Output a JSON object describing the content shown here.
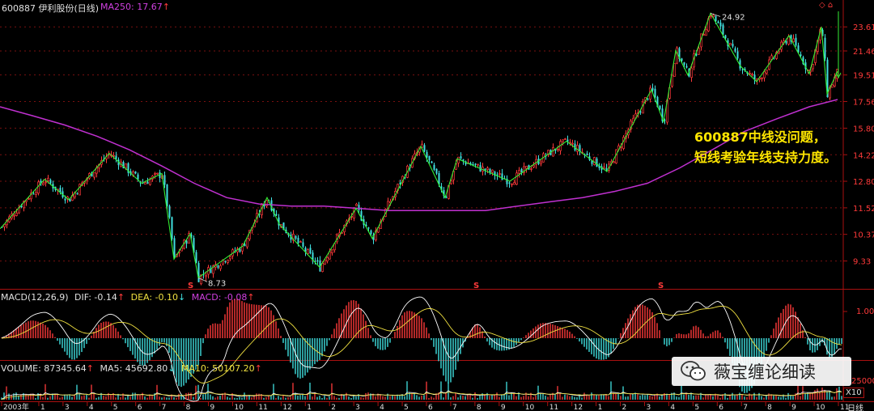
{
  "header": {
    "symbol_title": "600887 伊利股份(日线)",
    "ma250_label": "MA250: 17.67",
    "ma250_arrow": "↑",
    "top_right_icons": "◇ ⌂"
  },
  "annotation": {
    "line1": "600887中线没问题，",
    "line2": "短线考验年线支持力度。"
  },
  "markers": {
    "low_price": "8.73",
    "high_price": "24.92",
    "s_mark": "S"
  },
  "macd_header": {
    "title": "MACD(12,26,9)",
    "dif": "DIF: -0.14",
    "dif_arrow": "↑",
    "dea": "DEA: -0.10",
    "dea_arrow": "↓",
    "macd": "MACD: -0.08",
    "macd_arrow": "↑",
    "axis_label": "1.00"
  },
  "volume_header": {
    "volume": "VOLUME: 87345.64",
    "volume_arrow": "↑",
    "ma5": "MA5: 45692.80",
    "ma5_arrow": "↓",
    "ma10": "MA10: 50107.20",
    "ma10_arrow": "↑",
    "axis_label": "25000",
    "axis_unit": "X10"
  },
  "watermark": {
    "text": "薇宝缠论细读",
    "icon": "wechat-icon"
  },
  "bottom_axis": {
    "period_label": "日线",
    "ticks": [
      "2003年",
      "1",
      "3",
      "4",
      "5",
      "6",
      "7",
      "8",
      "9",
      "10",
      "11",
      "12",
      "1",
      "2",
      "3",
      "4",
      "5",
      "6",
      "7",
      "8",
      "9",
      "10",
      "11",
      "12",
      "1",
      "2",
      "3",
      "4",
      "5",
      "6",
      "7",
      "8",
      "9",
      "10",
      "11"
    ]
  },
  "colors": {
    "up": "#ff3a3a",
    "down": "#40e0e0",
    "ma250": "#c030d0",
    "zigzag": "#33ee33",
    "grid": "#7a1010",
    "annotation": "#ffe600"
  },
  "chart_data": [
    {
      "type": "candlestick",
      "title": "600887 伊利股份(日线)",
      "y_axis_ticks": [
        "23.61",
        "21.46",
        "19.51",
        "17.56",
        "15.80",
        "14.22",
        "12.80",
        "11.52",
        "10.37",
        "9.33"
      ],
      "y_scale": "log",
      "low_marker": 8.73,
      "high_marker": 24.92,
      "ma250": {
        "name": "MA250",
        "last_value": 17.67,
        "x": [
          0,
          40,
          80,
          120,
          160,
          200,
          240,
          280,
          320,
          360,
          400,
          440,
          480,
          520,
          560,
          600,
          640,
          680,
          720,
          760,
          800,
          840,
          880,
          920,
          960,
          1000,
          1035
        ],
        "y": [
          17.2,
          16.6,
          16.0,
          15.3,
          14.5,
          13.6,
          12.7,
          12.0,
          11.7,
          11.6,
          11.6,
          11.5,
          11.4,
          11.4,
          11.4,
          11.4,
          11.6,
          11.8,
          12.0,
          12.3,
          12.7,
          13.5,
          14.5,
          15.6,
          16.4,
          17.2,
          17.7
        ]
      },
      "zigzag": {
        "x": [
          0,
          55,
          85,
          135,
          175,
          200,
          215,
          235,
          245,
          300,
          330,
          345,
          395,
          440,
          460,
          520,
          550,
          565,
          630,
          700,
          750,
          805,
          820,
          835,
          850,
          878,
          915,
          935,
          975,
          1000,
          1015,
          1022,
          1035
        ],
        "y": [
          10.6,
          12.9,
          11.9,
          14.3,
          12.7,
          13.2,
          9.4,
          10.4,
          8.73,
          9.9,
          12.0,
          10.8,
          9.1,
          11.5,
          10.2,
          14.7,
          12.0,
          14.0,
          12.8,
          15.0,
          13.3,
          18.4,
          16.2,
          21.5,
          19.5,
          24.92,
          20.2,
          19.0,
          22.8,
          19.6,
          23.61,
          18.1,
          19.8
        ]
      },
      "s_marks_x": [
        235,
        588,
        816
      ]
    },
    {
      "type": "bar",
      "title": "MACD(12,26,9)",
      "series": [
        {
          "name": "DIF",
          "last_value": -0.14
        },
        {
          "name": "DEA",
          "last_value": -0.1
        },
        {
          "name": "MACD",
          "last_value": -0.08
        }
      ],
      "y_axis_ticks": [
        "1.00"
      ]
    },
    {
      "type": "bar",
      "title": "VOLUME",
      "series": [
        {
          "name": "VOLUME",
          "last_value": 87345.64
        },
        {
          "name": "MA5",
          "last_value": 45692.8
        },
        {
          "name": "MA10",
          "last_value": 50107.2
        }
      ],
      "y_axis_ticks": [
        "25000"
      ],
      "unit": "X10"
    }
  ]
}
